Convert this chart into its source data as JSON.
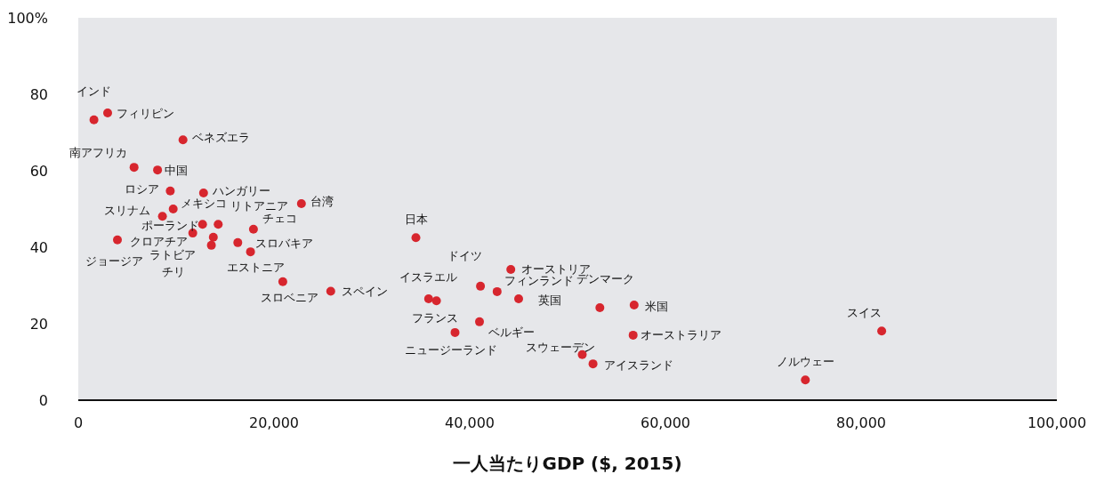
{
  "chart_data": {
    "type": "scatter",
    "xlabel": "一人当たりGDP ($, 2015)",
    "x": [
      1600,
      3000,
      10700,
      5700,
      8100,
      9400,
      12800,
      22800,
      9700,
      8600,
      12700,
      14300,
      11700,
      13800,
      13600,
      4000,
      17900,
      16300,
      17600,
      20900,
      25800,
      34500,
      35800,
      36600,
      41100,
      41000,
      38500,
      44200,
      42800,
      45000,
      53300,
      56800,
      56700,
      51500,
      52600,
      74300,
      82100
    ],
    "series": [
      {
        "color": "#d7262e",
        "values": [
          73.3,
          75.1,
          68.1,
          60.9,
          60.2,
          54.7,
          54.2,
          51.4,
          50.0,
          48.1,
          46.0,
          46.0,
          43.7,
          42.6,
          40.5,
          41.9,
          44.7,
          41.2,
          38.8,
          31.0,
          28.5,
          42.5,
          26.5,
          26.0,
          29.8,
          20.5,
          17.7,
          34.2,
          28.4,
          26.5,
          24.2,
          24.9,
          17.0,
          11.9,
          9.5,
          5.3,
          18.1
        ]
      }
    ],
    "xlim": [
      0,
      100000
    ],
    "xticks": [
      0,
      {
        "value": 20000,
        "label": "20,000"
      },
      {
        "value": 40000,
        "label": "40,000"
      },
      {
        "value": 60000,
        "label": "60,000"
      },
      {
        "value": 80000,
        "label": "80,000"
      },
      {
        "value": 100000,
        "label": "100,000"
      }
    ],
    "ylim": [
      0,
      100
    ],
    "yticks": [
      0,
      20,
      40,
      60,
      80,
      {
        "value": 100,
        "label": "100%"
      }
    ],
    "marker": "circle",
    "annotations": [
      {
        "text": "インド",
        "x": 1600,
        "y": 73.3
      },
      {
        "text": "フィリピン",
        "x": 3000,
        "y": 75.1
      },
      {
        "text": "ベネズエラ",
        "x": 10700,
        "y": 68.1
      },
      {
        "text": "南アフリカ",
        "x": 5700,
        "y": 60.9
      },
      {
        "text": "中国",
        "x": 8100,
        "y": 60.2
      },
      {
        "text": "ロシア",
        "x": 9400,
        "y": 54.7
      },
      {
        "text": "ハンガリー",
        "x": 12800,
        "y": 54.2
      },
      {
        "text": "台湾",
        "x": 22800,
        "y": 51.4
      },
      {
        "text": "メキシコ",
        "x": 9700,
        "y": 50.0
      },
      {
        "text": "スリナム",
        "x": 8600,
        "y": 48.1
      },
      {
        "text": "ポーランド",
        "x": 12700,
        "y": 46.0
      },
      {
        "text": "リトアニア",
        "x": 14300,
        "y": 46.0
      },
      {
        "text": "クロアチア",
        "x": 11700,
        "y": 43.7
      },
      {
        "text": "ラトビア",
        "x": 13800,
        "y": 42.6
      },
      {
        "text": "チリ",
        "x": 13600,
        "y": 40.5
      },
      {
        "text": "ジョージア",
        "x": 4000,
        "y": 41.9
      },
      {
        "text": "チェコ",
        "x": 17900,
        "y": 44.7
      },
      {
        "text": "スロバキア",
        "x": 16300,
        "y": 41.2
      },
      {
        "text": "エストニア",
        "x": 17600,
        "y": 38.8
      },
      {
        "text": "スロベニア",
        "x": 20900,
        "y": 31.0
      },
      {
        "text": "スペイン",
        "x": 25800,
        "y": 28.5
      },
      {
        "text": "日本",
        "x": 34500,
        "y": 42.5
      },
      {
        "text": "イスラエル",
        "x": 35800,
        "y": 26.5
      },
      {
        "text": "フランス",
        "x": 36600,
        "y": 26.0
      },
      {
        "text": "ドイツ",
        "x": 41100,
        "y": 29.8
      },
      {
        "text": "ベルギー",
        "x": 41000,
        "y": 20.5
      },
      {
        "text": "ニュージーランド",
        "x": 38500,
        "y": 17.7
      },
      {
        "text": "オーストリア",
        "x": 44200,
        "y": 34.2
      },
      {
        "text": "フィンランド",
        "x": 42800,
        "y": 28.4
      },
      {
        "text": "英国",
        "x": 45000,
        "y": 26.5
      },
      {
        "text": "デンマーク",
        "x": 53300,
        "y": 24.2
      },
      {
        "text": "米国",
        "x": 56800,
        "y": 24.9
      },
      {
        "text": "オーストラリア",
        "x": 56700,
        "y": 17.0
      },
      {
        "text": "スウェーデン",
        "x": 51500,
        "y": 11.9
      },
      {
        "text": "アイスランド",
        "x": 52600,
        "y": 9.5
      },
      {
        "text": "ノルウェー",
        "x": 74300,
        "y": 5.3
      },
      {
        "text": "スイス",
        "x": 82100,
        "y": 18.1
      }
    ]
  }
}
